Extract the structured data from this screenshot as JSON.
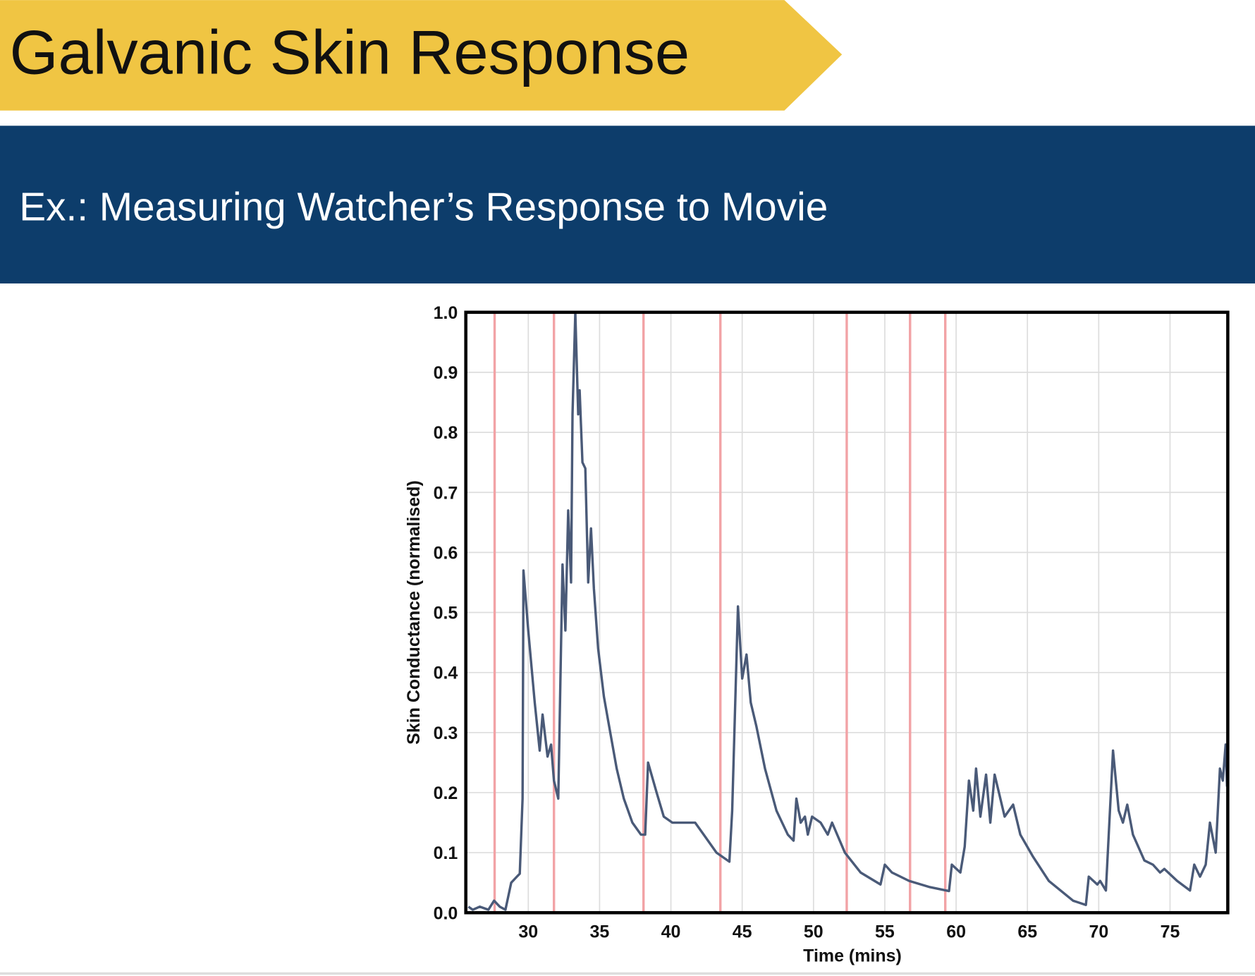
{
  "slide": {
    "title": "Galvanic Skin Response",
    "subtitle": "Ex.: Measuring Watcher’s Response to Movie"
  },
  "chart_data": {
    "type": "line",
    "x_label": "Time (mins)",
    "y_label": "Skin Conductance (normalised)",
    "xlim": [
      25.62,
      79.05
    ],
    "ylim": [
      0,
      1
    ],
    "xticks": [
      30,
      35,
      40,
      45,
      50,
      55,
      60,
      65,
      70,
      75
    ],
    "yticks": [
      {
        "value": 0,
        "label": "0.0"
      },
      {
        "value": 0.1,
        "label": "0.1"
      },
      {
        "value": 0.2,
        "label": "0.2"
      },
      {
        "value": 0.3,
        "label": "0.3"
      },
      {
        "value": 0.4,
        "label": "0.4"
      },
      {
        "value": 0.5,
        "label": "0.5"
      },
      {
        "value": 0.6,
        "label": "0.6"
      },
      {
        "value": 0.7,
        "label": "0.7"
      },
      {
        "value": 0.8,
        "label": "0.8"
      },
      {
        "value": 0.9,
        "label": "0.9"
      },
      {
        "value": 1,
        "label": "1.0"
      }
    ],
    "grid": true,
    "event_lines": {
      "color": "#f2a3a6",
      "x": [
        27.64,
        31.8,
        38.08,
        43.47,
        52.33,
        56.77,
        59.24
      ]
    },
    "x": [
      25.8,
      26.1,
      26.6,
      27.2,
      27.6,
      28.0,
      28.4,
      28.8,
      29.2,
      29.4,
      29.6,
      29.66,
      30.0,
      30.45,
      30.8,
      31.0,
      31.35,
      31.6,
      31.8,
      32.1,
      32.4,
      32.6,
      32.8,
      33.0,
      33.1,
      33.3,
      33.5,
      33.6,
      33.8,
      34.0,
      34.2,
      34.4,
      34.6,
      34.9,
      35.3,
      35.6,
      36.2,
      36.7,
      37.3,
      37.9,
      38.2,
      38.4,
      39.0,
      39.5,
      40.1,
      40.7,
      41.2,
      41.7,
      42.3,
      43.2,
      44.1,
      44.3,
      44.7,
      45.0,
      45.3,
      45.6,
      46.0,
      46.6,
      47.4,
      48.2,
      48.6,
      48.8,
      49.1,
      49.4,
      49.6,
      49.9,
      50.5,
      51.0,
      51.3,
      52.2,
      53.3,
      54.7,
      55.0,
      55.5,
      56.7,
      58.1,
      59.5,
      59.7,
      60.3,
      60.6,
      60.9,
      61.2,
      61.4,
      61.7,
      62.1,
      62.4,
      62.7,
      63.4,
      64.0,
      64.5,
      65.4,
      66.5,
      68.2,
      69.1,
      69.3,
      69.9,
      70.1,
      70.5,
      71.0,
      71.4,
      71.7,
      72.0,
      72.4,
      73.2,
      73.8,
      74.3,
      74.6,
      75.5,
      76.4,
      76.7,
      77.1,
      77.5,
      77.8,
      78.2,
      78.5,
      78.7,
      78.9,
      79.0
    ],
    "series": [
      {
        "color": "#4a5a78",
        "values": [
          0.01,
          0.005,
          0.01,
          0.005,
          0.02,
          0.01,
          0.005,
          0.05,
          0.06,
          0.065,
          0.19,
          0.57,
          0.47,
          0.35,
          0.27,
          0.33,
          0.26,
          0.28,
          0.22,
          0.19,
          0.58,
          0.47,
          0.67,
          0.55,
          0.83,
          1.0,
          0.83,
          0.87,
          0.75,
          0.74,
          0.55,
          0.64,
          0.54,
          0.44,
          0.36,
          0.32,
          0.24,
          0.19,
          0.15,
          0.13,
          0.13,
          0.25,
          0.2,
          0.16,
          0.15,
          0.15,
          0.15,
          0.15,
          0.13,
          0.1,
          0.085,
          0.17,
          0.51,
          0.39,
          0.43,
          0.35,
          0.31,
          0.24,
          0.17,
          0.13,
          0.12,
          0.19,
          0.15,
          0.16,
          0.13,
          0.16,
          0.15,
          0.13,
          0.15,
          0.1,
          0.067,
          0.047,
          0.08,
          0.067,
          0.053,
          0.043,
          0.036,
          0.08,
          0.067,
          0.11,
          0.22,
          0.17,
          0.24,
          0.16,
          0.23,
          0.15,
          0.23,
          0.16,
          0.18,
          0.13,
          0.093,
          0.053,
          0.02,
          0.013,
          0.06,
          0.047,
          0.053,
          0.037,
          0.27,
          0.17,
          0.15,
          0.18,
          0.13,
          0.087,
          0.08,
          0.067,
          0.073,
          0.053,
          0.037,
          0.08,
          0.06,
          0.08,
          0.15,
          0.1,
          0.24,
          0.22,
          0.28,
          0.21
        ]
      }
    ]
  }
}
